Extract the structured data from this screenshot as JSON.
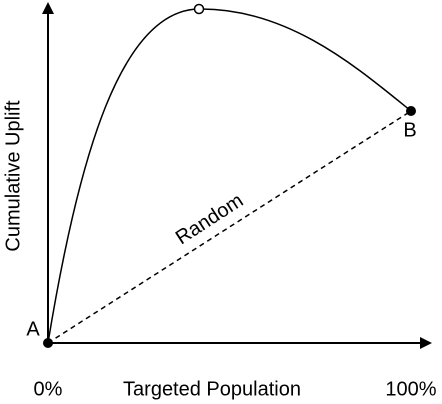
{
  "axes": {
    "x_label": "Targeted Population",
    "y_label": "Cumulative Uplift",
    "x_start": "0%",
    "x_end": "100%"
  },
  "points": {
    "start": "A",
    "end": "B"
  },
  "baseline": {
    "label": "Random"
  }
}
